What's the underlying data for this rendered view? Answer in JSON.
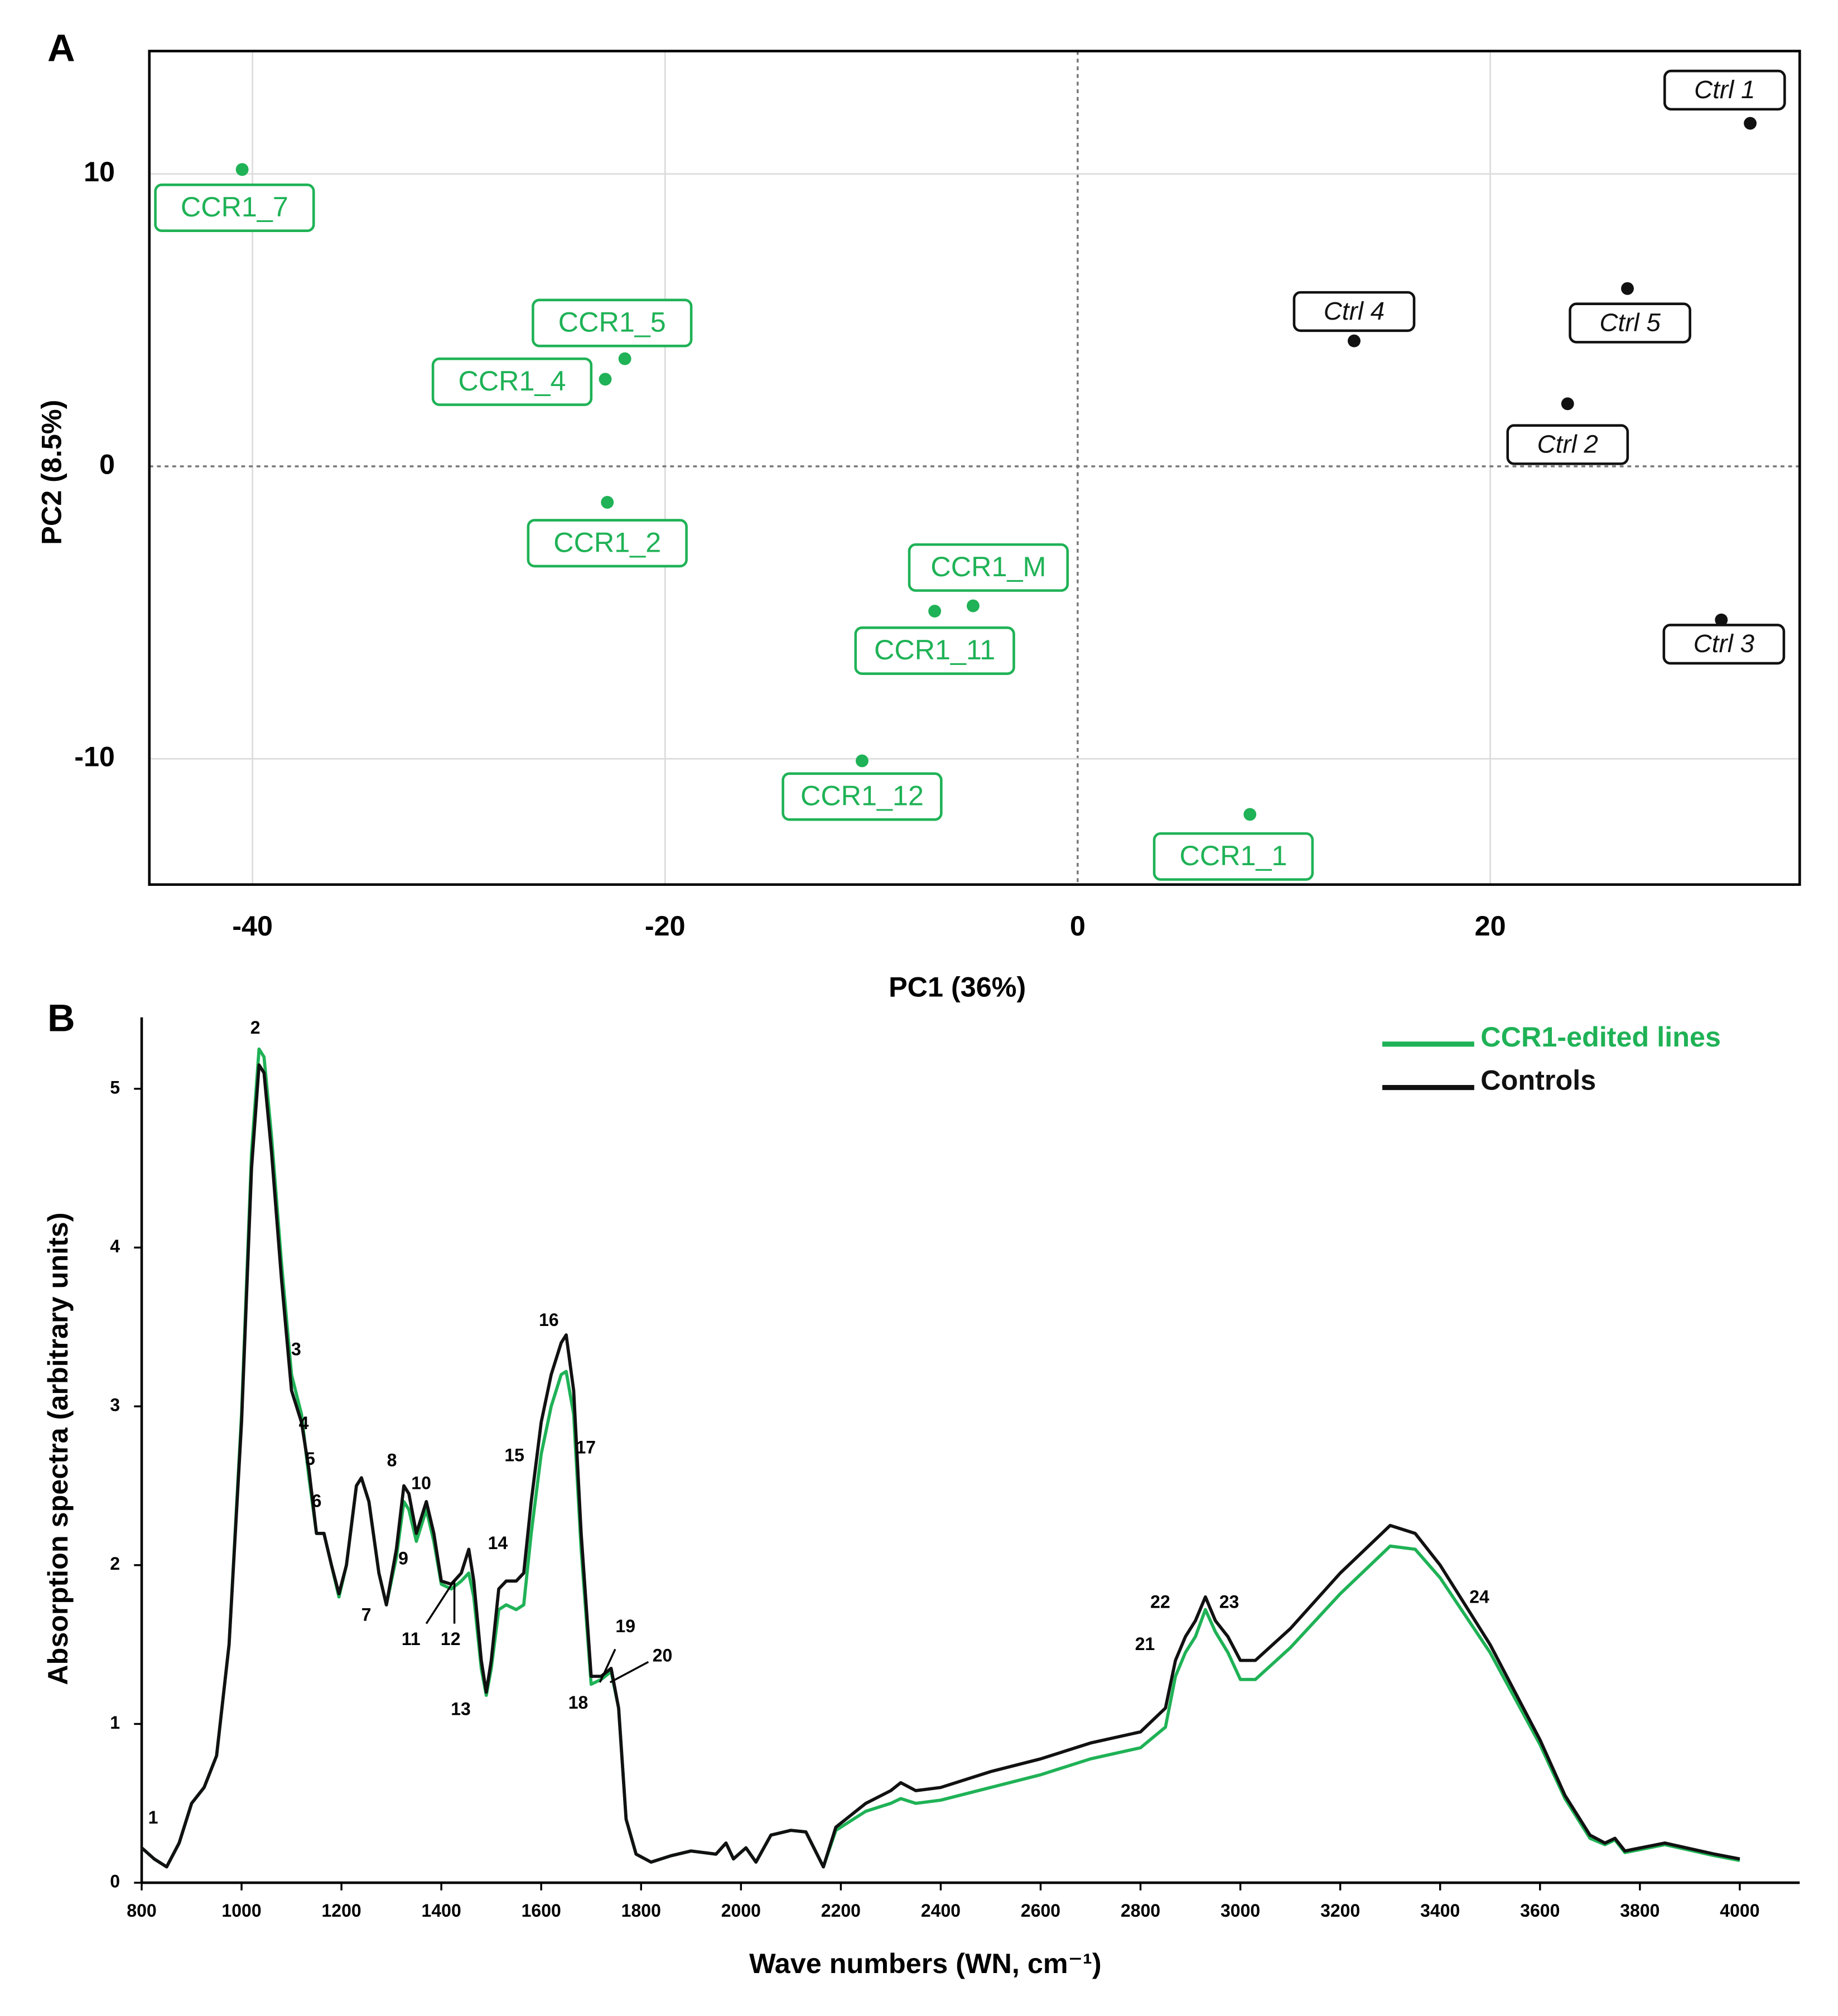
{
  "chart_data": [
    {
      "type": "scatter",
      "panel_label": "A",
      "xlabel": "PC1 (36%)",
      "ylabel": "PC2 (8.5%)",
      "xlim": [
        -45,
        35
      ],
      "ylim": [
        -14.3,
        14.2
      ],
      "xticks": [
        -40,
        -20,
        0,
        20
      ],
      "yticks": [
        -10,
        0,
        10
      ],
      "grid": true,
      "series": [
        {
          "color": "#1fb256",
          "labels": [
            "CCR1_7",
            "CCR1_5",
            "CCR1_4",
            "CCR1_2",
            "CCR1_M",
            "CCR1_11",
            "CCR1_12",
            "CCR1_1"
          ],
          "x": [
            -40.5,
            -21.95,
            -22.9,
            -22.8,
            -5.07,
            -6.93,
            -10.45,
            8.35
          ],
          "values": [
            10.15,
            3.68,
            2.98,
            -1.23,
            -4.77,
            -4.95,
            -10.07,
            -11.9
          ]
        },
        {
          "color": "#111111",
          "labels": [
            "Ctrl 1",
            "Ctrl 4",
            "Ctrl 5",
            "Ctrl 2",
            "Ctrl 3"
          ],
          "x": [
            32.6,
            13.4,
            26.65,
            23.75,
            31.2
          ],
          "values": [
            11.73,
            4.29,
            6.08,
            2.14,
            -5.25
          ]
        }
      ]
    },
    {
      "type": "line",
      "panel_label": "B",
      "xlabel": "Wave numbers (WN, cm⁻¹)",
      "ylabel": "Absorption spectra (arbitrary units)",
      "xlim": [
        800,
        4120
      ],
      "ylim": [
        0,
        5.45
      ],
      "xticks": [
        800,
        1000,
        1200,
        1400,
        1600,
        1800,
        2000,
        2200,
        2400,
        2600,
        2800,
        3000,
        3200,
        3400,
        3600,
        3800,
        4000
      ],
      "yticks": [
        0,
        1,
        2,
        3,
        4,
        5
      ],
      "grid": false,
      "legend": "upper right",
      "annotations": [
        "1",
        "2",
        "3",
        "4",
        "5",
        "6",
        "7",
        "8",
        "9",
        "10",
        "11",
        "12",
        "13",
        "14",
        "15",
        "16",
        "17",
        "18",
        "19",
        "20",
        "21",
        "22",
        "23",
        "24"
      ],
      "x": [
        800,
        825,
        850,
        875,
        900,
        925,
        950,
        975,
        1000,
        1020,
        1035,
        1045,
        1060,
        1080,
        1100,
        1120,
        1135,
        1150,
        1165,
        1180,
        1195,
        1210,
        1230,
        1240,
        1255,
        1275,
        1290,
        1310,
        1325,
        1335,
        1350,
        1370,
        1385,
        1400,
        1420,
        1440,
        1455,
        1465,
        1480,
        1490,
        1500,
        1515,
        1530,
        1550,
        1565,
        1580,
        1600,
        1620,
        1640,
        1650,
        1665,
        1680,
        1700,
        1720,
        1740,
        1755,
        1770,
        1790,
        1820,
        1860,
        1900,
        1950,
        1970,
        1985,
        2010,
        2030,
        2060,
        2100,
        2130,
        2165,
        2190,
        2250,
        2300,
        2320,
        2350,
        2400,
        2500,
        2600,
        2700,
        2800,
        2850,
        2870,
        2890,
        2910,
        2930,
        2950,
        2975,
        3000,
        3030,
        3100,
        3200,
        3300,
        3350,
        3400,
        3500,
        3600,
        3650,
        3700,
        3730,
        3750,
        3770,
        3850,
        3950,
        4000
      ],
      "series": [
        {
          "name": "CCR1-edited lines",
          "color": "#1fb256",
          "values": [
            0.22,
            0.15,
            0.1,
            0.25,
            0.5,
            0.6,
            0.8,
            1.5,
            2.95,
            4.6,
            5.25,
            5.2,
            4.7,
            3.9,
            3.2,
            2.95,
            2.55,
            2.2,
            2.2,
            2.0,
            1.8,
            2.0,
            2.5,
            2.55,
            2.4,
            1.95,
            1.75,
            2.05,
            2.4,
            2.35,
            2.15,
            2.35,
            2.15,
            1.88,
            1.85,
            1.9,
            1.95,
            1.8,
            1.35,
            1.18,
            1.35,
            1.72,
            1.75,
            1.72,
            1.75,
            2.2,
            2.7,
            3.0,
            3.2,
            3.22,
            2.95,
            2.1,
            1.25,
            1.28,
            1.33,
            1.1,
            0.4,
            0.18,
            0.13,
            0.17,
            0.2,
            0.18,
            0.25,
            0.15,
            0.22,
            0.13,
            0.3,
            0.33,
            0.32,
            0.1,
            0.33,
            0.45,
            0.5,
            0.53,
            0.5,
            0.52,
            0.6,
            0.68,
            0.78,
            0.85,
            0.98,
            1.3,
            1.45,
            1.55,
            1.72,
            1.58,
            1.45,
            1.28,
            1.28,
            1.48,
            1.82,
            2.12,
            2.1,
            1.92,
            1.45,
            0.87,
            0.53,
            0.28,
            0.24,
            0.27,
            0.19,
            0.24,
            0.17,
            0.14
          ]
        },
        {
          "name": "Controls",
          "color": "#111111",
          "values": [
            0.22,
            0.15,
            0.1,
            0.25,
            0.5,
            0.6,
            0.8,
            1.5,
            2.9,
            4.5,
            5.15,
            5.1,
            4.6,
            3.8,
            3.1,
            2.9,
            2.6,
            2.2,
            2.2,
            2.0,
            1.82,
            2.0,
            2.5,
            2.55,
            2.4,
            1.95,
            1.75,
            2.1,
            2.5,
            2.45,
            2.2,
            2.4,
            2.2,
            1.9,
            1.88,
            1.95,
            2.1,
            1.9,
            1.4,
            1.2,
            1.4,
            1.85,
            1.9,
            1.9,
            1.95,
            2.4,
            2.9,
            3.2,
            3.4,
            3.45,
            3.1,
            2.2,
            1.3,
            1.3,
            1.35,
            1.1,
            0.4,
            0.18,
            0.13,
            0.17,
            0.2,
            0.18,
            0.25,
            0.15,
            0.22,
            0.13,
            0.3,
            0.33,
            0.32,
            0.1,
            0.35,
            0.5,
            0.58,
            0.63,
            0.58,
            0.6,
            0.7,
            0.78,
            0.88,
            0.95,
            1.1,
            1.4,
            1.55,
            1.65,
            1.8,
            1.65,
            1.55,
            1.4,
            1.4,
            1.6,
            1.95,
            2.25,
            2.2,
            2.0,
            1.5,
            0.9,
            0.55,
            0.3,
            0.25,
            0.28,
            0.2,
            0.25,
            0.18,
            0.15
          ]
        }
      ]
    }
  ]
}
